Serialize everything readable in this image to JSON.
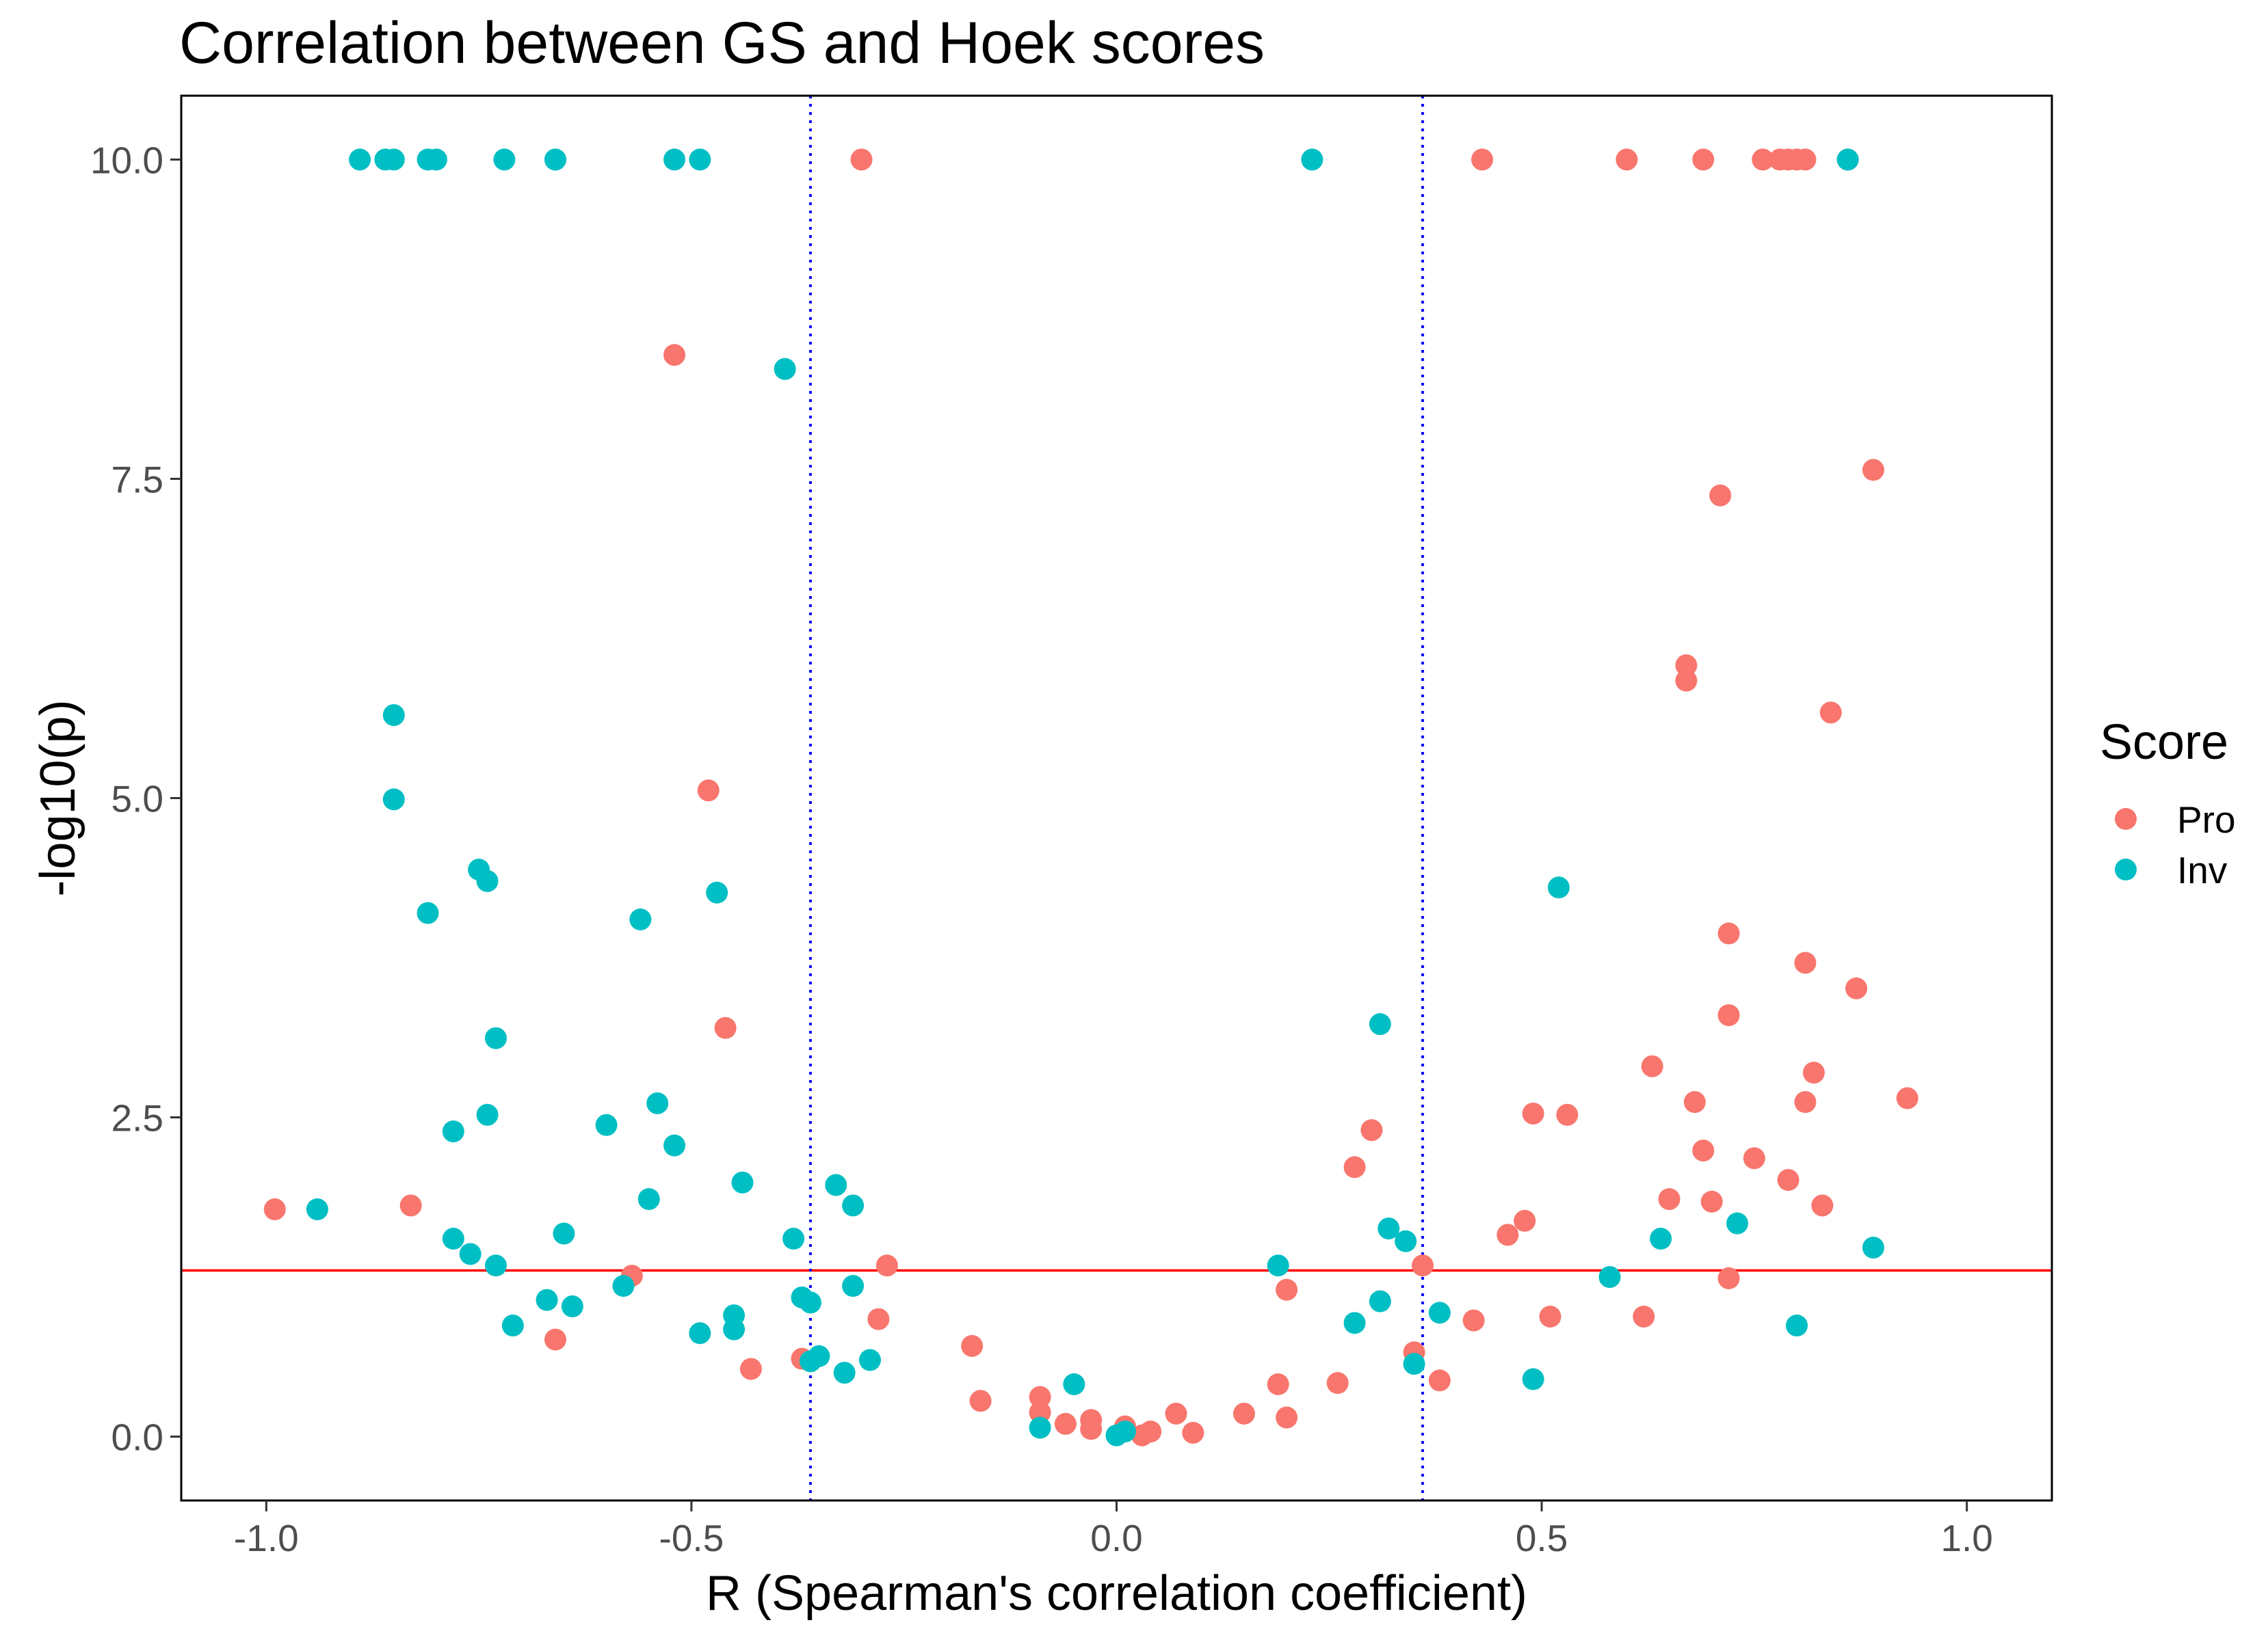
{
  "chart_data": {
    "type": "scatter",
    "title": "Correlation between GS and Hoek scores",
    "xlabel": "R (Spearman's correlation coefficient)",
    "ylabel": "-log10(p)",
    "xlim": [
      -1.1,
      1.1
    ],
    "ylim": [
      -0.5,
      10.5
    ],
    "x_ticks": [
      -1.0,
      -0.5,
      0.0,
      0.5,
      1.0
    ],
    "x_tick_labels": [
      "-1.0",
      "-0.5",
      "0.0",
      "0.5",
      "1.0"
    ],
    "y_ticks": [
      0.0,
      2.5,
      5.0,
      7.5,
      10.0
    ],
    "y_tick_labels": [
      "0.0",
      "2.5",
      "5.0",
      "7.5",
      "10.0"
    ],
    "grid": false,
    "legend_position": "right",
    "legend": {
      "title": "Score",
      "entries": [
        "Pro",
        "Inv"
      ]
    },
    "reference_lines": {
      "horizontal": [
        {
          "y": 1.301,
          "color": "#ff0000",
          "style": "solid"
        }
      ],
      "vertical": [
        {
          "x": -0.36,
          "color": "#0000ff",
          "style": "dotted"
        },
        {
          "x": 0.36,
          "color": "#0000ff",
          "style": "dotted"
        }
      ]
    },
    "series": [
      {
        "name": "Pro",
        "color": "#f8766d",
        "points": [
          [
            -0.3,
            10.0
          ],
          [
            0.43,
            10.0
          ],
          [
            0.6,
            10.0
          ],
          [
            0.69,
            10.0
          ],
          [
            0.76,
            10.0
          ],
          [
            0.78,
            10.0
          ],
          [
            0.79,
            10.0
          ],
          [
            0.8,
            10.0
          ],
          [
            0.81,
            10.0
          ],
          [
            0.86,
            10.0
          ],
          [
            -0.52,
            8.47
          ],
          [
            0.89,
            7.57
          ],
          [
            0.71,
            7.37
          ],
          [
            0.67,
            6.04
          ],
          [
            0.67,
            5.92
          ],
          [
            0.84,
            5.67
          ],
          [
            -0.48,
            5.06
          ],
          [
            0.72,
            3.94
          ],
          [
            0.81,
            3.71
          ],
          [
            0.87,
            3.51
          ],
          [
            0.72,
            3.3
          ],
          [
            -0.46,
            3.2
          ],
          [
            0.63,
            2.9
          ],
          [
            0.82,
            2.85
          ],
          [
            0.93,
            2.65
          ],
          [
            0.68,
            2.62
          ],
          [
            0.81,
            2.62
          ],
          [
            0.49,
            2.53
          ],
          [
            0.53,
            2.52
          ],
          [
            0.3,
            2.4
          ],
          [
            0.69,
            2.24
          ],
          [
            0.75,
            2.18
          ],
          [
            0.28,
            2.11
          ],
          [
            0.79,
            2.01
          ],
          [
            0.65,
            1.86
          ],
          [
            0.7,
            1.84
          ],
          [
            -0.83,
            1.81
          ],
          [
            0.83,
            1.81
          ],
          [
            -0.99,
            1.78
          ],
          [
            0.48,
            1.69
          ],
          [
            0.46,
            1.58
          ],
          [
            0.36,
            1.34
          ],
          [
            -0.27,
            1.34
          ],
          [
            -0.57,
            1.26
          ],
          [
            0.72,
            1.24
          ],
          [
            0.2,
            1.15
          ],
          [
            0.51,
            0.94
          ],
          [
            0.62,
            0.94
          ],
          [
            -0.28,
            0.92
          ],
          [
            0.42,
            0.91
          ],
          [
            -0.66,
            0.76
          ],
          [
            -0.17,
            0.71
          ],
          [
            0.35,
            0.66
          ],
          [
            -0.37,
            0.61
          ],
          [
            -0.43,
            0.53
          ],
          [
            0.38,
            0.44
          ],
          [
            0.26,
            0.42
          ],
          [
            0.19,
            0.41
          ],
          [
            -0.09,
            0.31
          ],
          [
            -0.16,
            0.28
          ],
          [
            -0.09,
            0.19
          ],
          [
            0.15,
            0.18
          ],
          [
            0.07,
            0.18
          ],
          [
            0.2,
            0.15
          ],
          [
            -0.03,
            0.13
          ],
          [
            -0.06,
            0.1
          ],
          [
            0.01,
            0.08
          ],
          [
            -0.03,
            0.06
          ],
          [
            0.04,
            0.04
          ],
          [
            0.09,
            0.03
          ],
          [
            0.03,
            0.01
          ]
        ]
      },
      {
        "name": "Inv",
        "color": "#00bfc4",
        "points": [
          [
            -0.89,
            10.0
          ],
          [
            -0.86,
            10.0
          ],
          [
            -0.85,
            10.0
          ],
          [
            -0.81,
            10.0
          ],
          [
            -0.8,
            10.0
          ],
          [
            -0.72,
            10.0
          ],
          [
            -0.66,
            10.0
          ],
          [
            -0.66,
            10.0
          ],
          [
            -0.52,
            10.0
          ],
          [
            -0.49,
            10.0
          ],
          [
            0.23,
            10.0
          ],
          [
            0.86,
            10.0
          ],
          [
            -0.39,
            8.36
          ],
          [
            -0.85,
            5.65
          ],
          [
            -0.85,
            4.99
          ],
          [
            -0.75,
            4.44
          ],
          [
            -0.74,
            4.35
          ],
          [
            0.52,
            4.3
          ],
          [
            -0.47,
            4.26
          ],
          [
            -0.81,
            4.1
          ],
          [
            -0.56,
            4.05
          ],
          [
            0.31,
            3.23
          ],
          [
            -0.73,
            3.12
          ],
          [
            -0.54,
            2.61
          ],
          [
            -0.74,
            2.52
          ],
          [
            -0.6,
            2.44
          ],
          [
            -0.78,
            2.39
          ],
          [
            -0.52,
            2.28
          ],
          [
            -0.44,
            1.99
          ],
          [
            -0.33,
            1.97
          ],
          [
            -0.55,
            1.86
          ],
          [
            -0.31,
            1.81
          ],
          [
            -0.94,
            1.78
          ],
          [
            0.73,
            1.67
          ],
          [
            0.32,
            1.63
          ],
          [
            -0.65,
            1.59
          ],
          [
            -0.78,
            1.55
          ],
          [
            -0.38,
            1.55
          ],
          [
            0.64,
            1.55
          ],
          [
            0.34,
            1.53
          ],
          [
            0.89,
            1.48
          ],
          [
            -0.76,
            1.43
          ],
          [
            -0.73,
            1.34
          ],
          [
            0.19,
            1.34
          ],
          [
            0.58,
            1.25
          ],
          [
            -0.58,
            1.18
          ],
          [
            -0.31,
            1.18
          ],
          [
            -0.37,
            1.09
          ],
          [
            -0.67,
            1.07
          ],
          [
            0.31,
            1.06
          ],
          [
            -0.36,
            1.05
          ],
          [
            -0.64,
            1.02
          ],
          [
            0.38,
            0.97
          ],
          [
            -0.45,
            0.95
          ],
          [
            0.28,
            0.89
          ],
          [
            -0.71,
            0.87
          ],
          [
            0.8,
            0.87
          ],
          [
            -0.45,
            0.84
          ],
          [
            -0.49,
            0.81
          ],
          [
            -0.35,
            0.63
          ],
          [
            -0.29,
            0.6
          ],
          [
            -0.36,
            0.59
          ],
          [
            0.35,
            0.57
          ],
          [
            -0.32,
            0.5
          ],
          [
            0.49,
            0.45
          ],
          [
            -0.05,
            0.41
          ],
          [
            -0.09,
            0.07
          ],
          [
            0.01,
            0.04
          ],
          [
            0.0,
            0.01
          ]
        ]
      }
    ]
  }
}
